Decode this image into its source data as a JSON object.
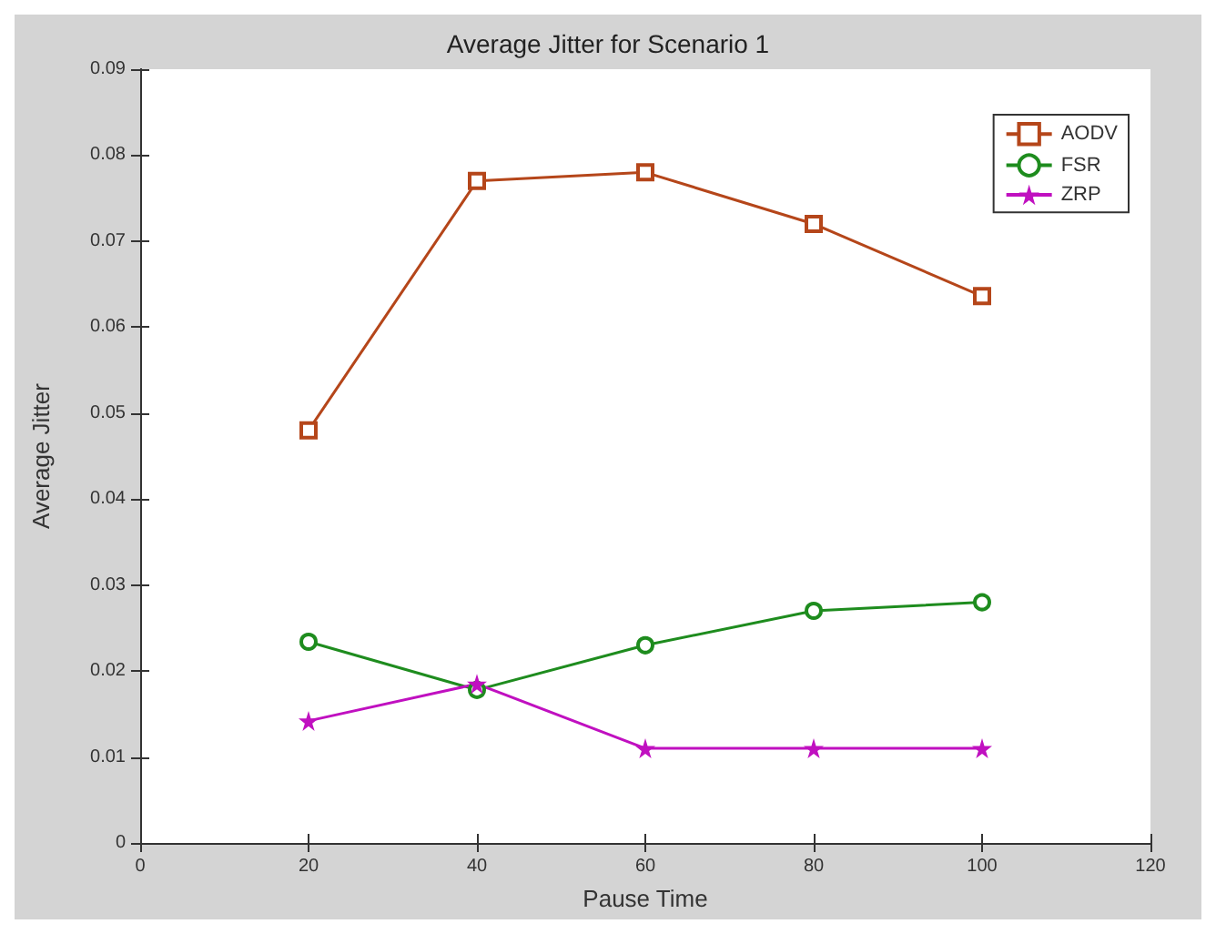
{
  "chart_data": {
    "type": "line",
    "title": "Average Jitter for Scenario 1",
    "xlabel": "Pause Time",
    "ylabel": "Average Jitter",
    "x": [
      20,
      40,
      60,
      80,
      100
    ],
    "series": [
      {
        "name": "AODV",
        "color": "#b5461a",
        "marker": "square",
        "values": [
          0.048,
          0.077,
          0.078,
          0.072,
          0.0636
        ]
      },
      {
        "name": "FSR",
        "color": "#1e8c1e",
        "marker": "circle",
        "values": [
          0.0234,
          0.0178,
          0.023,
          0.027,
          0.028
        ]
      },
      {
        "name": "ZRP",
        "color": "#c010c0",
        "marker": "star",
        "values": [
          0.0142,
          0.0185,
          0.011,
          0.011,
          0.011
        ]
      }
    ],
    "xlim": [
      0,
      120
    ],
    "xticks": [
      0,
      20,
      40,
      60,
      80,
      100,
      120
    ],
    "ylim": [
      0,
      0.09
    ],
    "yticks": [
      0,
      0.01,
      0.02,
      0.03,
      0.04,
      0.05,
      0.06,
      0.07,
      0.08,
      0.09
    ],
    "grid": false,
    "legend": "top right",
    "line_style": "solid"
  }
}
